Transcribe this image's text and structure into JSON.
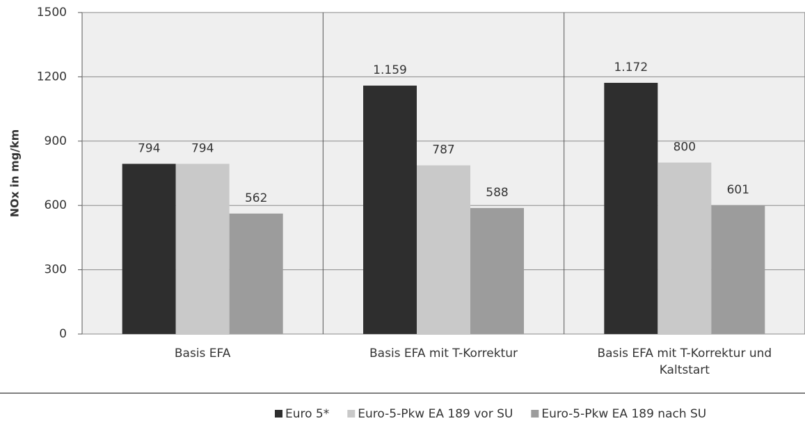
{
  "chart_data": {
    "type": "bar",
    "y_label": "NOx in mg/km",
    "categories": [
      "Basis EFA",
      "Basis EFA mit T-Korrektur",
      "Basis EFA mit T-Korrektur und Kaltstart"
    ],
    "series": [
      {
        "name": "Euro 5*",
        "color": "#2e2e2e",
        "values": [
          794,
          1159,
          1172
        ],
        "value_labels": [
          "794",
          "1.159",
          "1.172"
        ]
      },
      {
        "name": "Euro-5-Pkw EA 189 vor SU",
        "color": "#c9c9c9",
        "values": [
          794,
          787,
          800
        ]
      },
      {
        "name": "Euro-5-Pkw EA 189 nach SU",
        "color": "#9c9c9c",
        "values": [
          562,
          588,
          601
        ]
      }
    ],
    "ylim": [
      0,
      1500
    ],
    "yticks": [
      0,
      300,
      600,
      900,
      1200,
      1500
    ],
    "grid": true,
    "legend": "bottom"
  }
}
